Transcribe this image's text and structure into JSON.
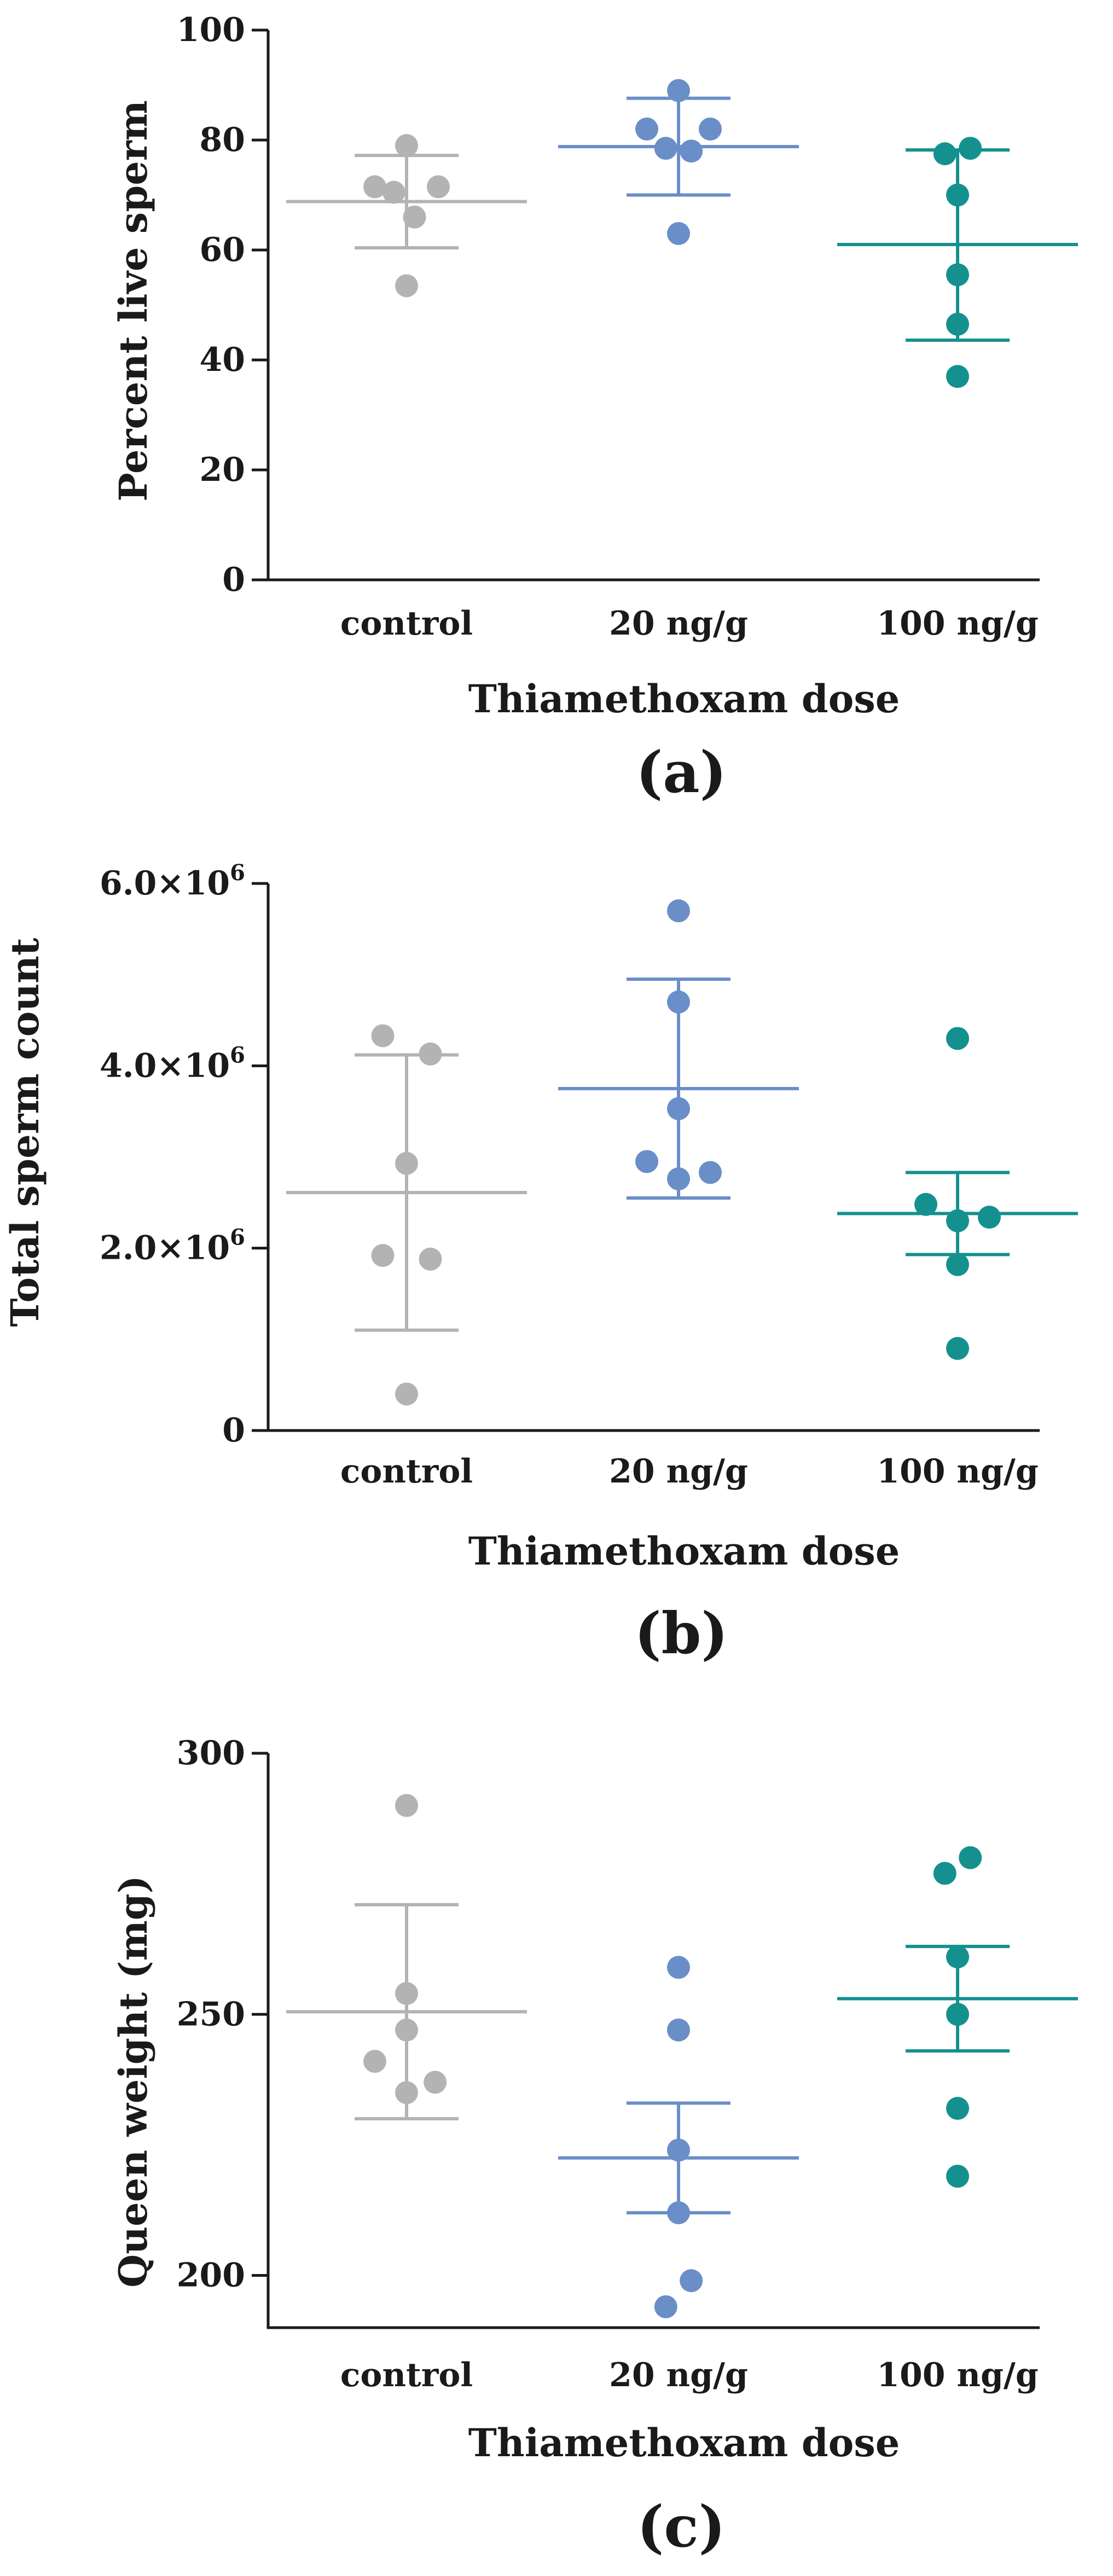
{
  "chart_data": [
    {
      "type": "scatter",
      "panel": "(a)",
      "ylabel": "Percent live sperm",
      "xlabel": "Thiamethoxam dose",
      "categories": [
        "control",
        "20 ng/g",
        "100 ng/g"
      ],
      "ylim": [
        0,
        100
      ],
      "yticks": [
        0,
        20,
        40,
        60,
        80,
        100
      ],
      "ytick_labels": [
        "0",
        "20",
        "40",
        "60",
        "80",
        "100"
      ],
      "ytick_exp": [
        "",
        "",
        "",
        "",
        "",
        ""
      ],
      "series": [
        {
          "name": "control",
          "color": "#b3b3b3",
          "points": [
            [
              -0.2,
              71.5
            ],
            [
              -0.08,
              70.5
            ],
            [
              0.0,
              79.0
            ],
            [
              0.05,
              66.0
            ],
            [
              0.2,
              71.5
            ],
            [
              0.0,
              53.5
            ]
          ],
          "mean": 68.8,
          "err_low": 60.4,
          "err_high": 77.2
        },
        {
          "name": "20 ng/g",
          "color": "#6a8ec8",
          "points": [
            [
              -0.2,
              82.0
            ],
            [
              0.0,
              89.0
            ],
            [
              0.2,
              82.0
            ],
            [
              -0.08,
              78.5
            ],
            [
              0.08,
              78.0
            ],
            [
              0.0,
              63.0
            ]
          ],
          "mean": 78.8,
          "err_low": 70.0,
          "err_high": 87.6
        },
        {
          "name": "100 ng/g",
          "color": "#14918e",
          "points": [
            [
              -0.08,
              77.5
            ],
            [
              0.08,
              78.5
            ],
            [
              0.0,
              70.0
            ],
            [
              0.0,
              55.5
            ],
            [
              0.0,
              46.5
            ],
            [
              0.0,
              37.0
            ]
          ],
          "mean": 61.0,
          "err_low": 43.6,
          "err_high": 78.2
        }
      ]
    },
    {
      "type": "scatter",
      "panel": "(b)",
      "ylabel": "Total sperm count",
      "xlabel": "Thiamethoxam dose",
      "categories": [
        "control",
        "20 ng/g",
        "100 ng/g"
      ],
      "ylim": [
        0,
        6000000
      ],
      "yticks": [
        0,
        2000000,
        4000000,
        6000000
      ],
      "ytick_labels": [
        "0",
        "2.0×10",
        "4.0×10",
        "6.0×10"
      ],
      "ytick_exp": [
        "",
        "6",
        "6",
        "6"
      ],
      "series": [
        {
          "name": "control",
          "color": "#b3b3b3",
          "points": [
            [
              -0.15,
              4330000
            ],
            [
              0.15,
              4130000
            ],
            [
              0.0,
              2930000
            ],
            [
              -0.15,
              1920000
            ],
            [
              0.15,
              1880000
            ],
            [
              0.0,
              400000
            ]
          ],
          "mean": 2610000,
          "err_low": 1100000,
          "err_high": 4120000
        },
        {
          "name": "20 ng/g",
          "color": "#6a8ec8",
          "points": [
            [
              0.0,
              5700000
            ],
            [
              0.0,
              4700000
            ],
            [
              0.0,
              3530000
            ],
            [
              -0.2,
              2950000
            ],
            [
              0.0,
              2760000
            ],
            [
              0.2,
              2830000
            ]
          ],
          "mean": 3750000,
          "err_low": 2550000,
          "err_high": 4950000
        },
        {
          "name": "100 ng/g",
          "color": "#14918e",
          "points": [
            [
              0.0,
              4300000
            ],
            [
              -0.2,
              2480000
            ],
            [
              0.0,
              2300000
            ],
            [
              0.2,
              2340000
            ],
            [
              0.0,
              1820000
            ],
            [
              0.0,
              900000
            ]
          ],
          "mean": 2380000,
          "err_low": 1930000,
          "err_high": 2830000
        }
      ]
    },
    {
      "type": "scatter",
      "panel": "(c)",
      "ylabel": "Queen weight (mg)",
      "xlabel": "Thiamethoxam dose",
      "categories": [
        "control",
        "20 ng/g",
        "100 ng/g"
      ],
      "ylim": [
        190,
        300
      ],
      "yticks": [
        200,
        250,
        300
      ],
      "ytick_labels": [
        "200",
        "250",
        "300"
      ],
      "ytick_exp": [
        "",
        "",
        ""
      ],
      "series": [
        {
          "name": "control",
          "color": "#b3b3b3",
          "points": [
            [
              0.0,
              290
            ],
            [
              0.0,
              254
            ],
            [
              0.0,
              247
            ],
            [
              -0.2,
              241
            ],
            [
              0.0,
              235
            ],
            [
              0.18,
              237
            ]
          ],
          "mean": 250.5,
          "err_low": 230.0,
          "err_high": 271.0
        },
        {
          "name": "20 ng/g",
          "color": "#6a8ec8",
          "points": [
            [
              0.0,
              259
            ],
            [
              0.0,
              247
            ],
            [
              0.0,
              224
            ],
            [
              0.0,
              212
            ],
            [
              0.08,
              199
            ],
            [
              -0.08,
              194
            ]
          ],
          "mean": 222.5,
          "err_low": 212.0,
          "err_high": 233.0
        },
        {
          "name": "100 ng/g",
          "color": "#14918e",
          "points": [
            [
              -0.08,
              277
            ],
            [
              0.08,
              280
            ],
            [
              0.0,
              261
            ],
            [
              0.0,
              250
            ],
            [
              0.0,
              232
            ],
            [
              0.0,
              219
            ]
          ],
          "mean": 253.0,
          "err_low": 243.0,
          "err_high": 263.0
        }
      ]
    }
  ]
}
